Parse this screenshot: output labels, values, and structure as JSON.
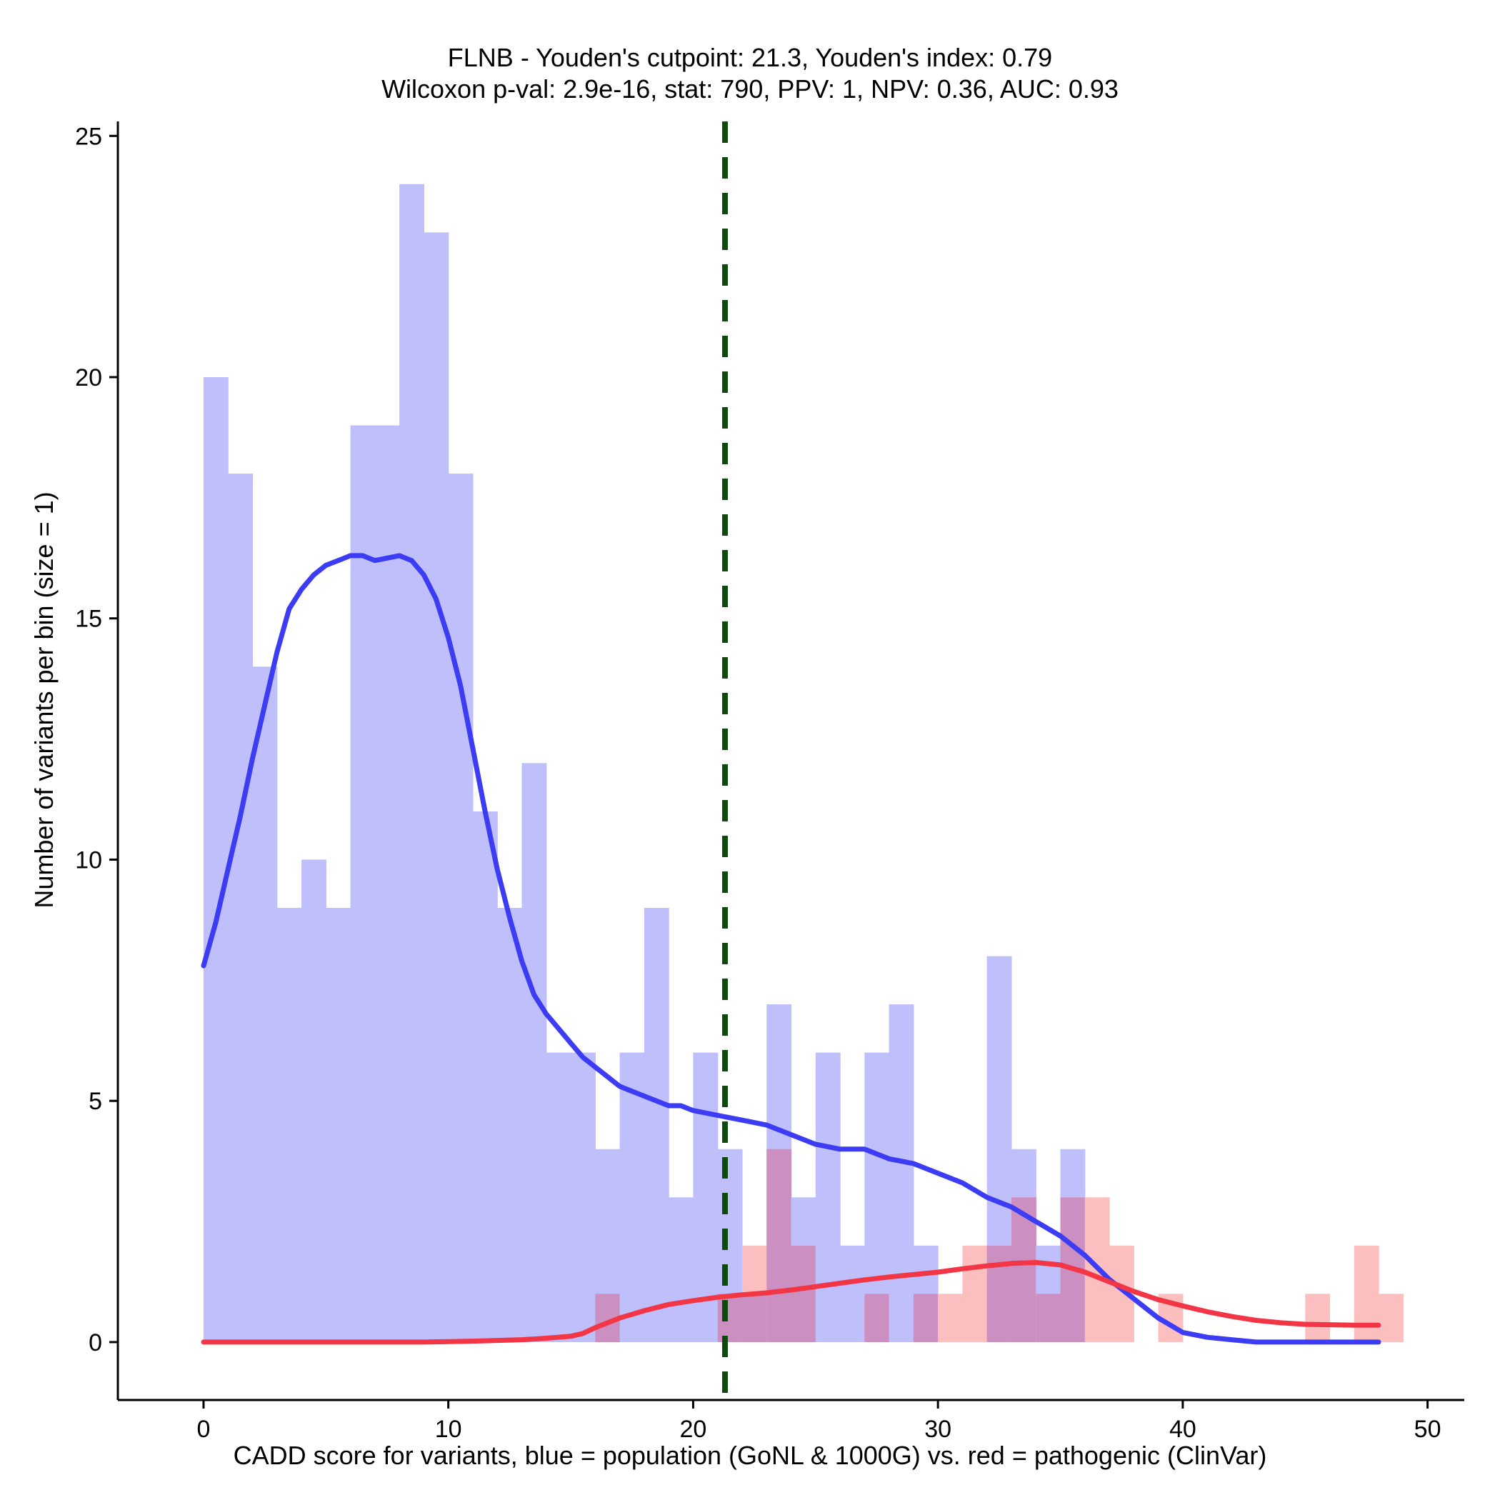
{
  "chart_data": {
    "type": "histogram",
    "title": "FLNB - Youden's cutpoint: 21.3, Youden's index: 0.79",
    "subtitle": "Wilcoxon p-val: 2.9e-16, stat: 790, PPV: 1, NPV: 0.36, AUC: 0.93",
    "xlabel": "CADD score for variants, blue = population (GoNL & 1000G) vs. red = pathogenic (ClinVar)",
    "ylabel": "Number of variants per bin (size = 1)",
    "xlim": [
      -3.5,
      51.5
    ],
    "ylim": [
      -1.2,
      25.3
    ],
    "xticks": [
      "0",
      "10",
      "20",
      "30",
      "40",
      "50"
    ],
    "yticks": [
      "0",
      "5",
      "10",
      "15",
      "20",
      "25"
    ],
    "cutpoint": 21.3,
    "bin_size": 1,
    "series": [
      {
        "name": "population (GoNL & 1000G)",
        "color": "#bfbffb",
        "bins_start": 0,
        "values": [
          20,
          18,
          14,
          9,
          10,
          9,
          19,
          19,
          24,
          23,
          18,
          11,
          9,
          12,
          6,
          6,
          4,
          6,
          9,
          3,
          6,
          4,
          1,
          7,
          3,
          6,
          2,
          6,
          7,
          2,
          0,
          0,
          8,
          4,
          2,
          4,
          0,
          0,
          0,
          0,
          0,
          0,
          0,
          0,
          0,
          0,
          0,
          0,
          0
        ]
      },
      {
        "name": "pathogenic (ClinVar)",
        "color": "#fbbfbf",
        "bins_start": 0,
        "values": [
          0,
          0,
          0,
          0,
          0,
          0,
          0,
          0,
          0,
          0,
          0,
          0,
          0,
          0,
          0,
          0,
          1,
          0,
          0,
          0,
          0,
          1,
          2,
          4,
          2,
          0,
          0,
          1,
          0,
          1,
          1,
          2,
          2,
          3,
          1,
          3,
          3,
          2,
          0,
          1,
          0,
          0,
          0,
          0,
          0,
          1,
          0,
          2,
          1
        ]
      }
    ],
    "overlap_color": "#cc8fc2",
    "density_lines": [
      {
        "name": "population density",
        "color": "#3c3cf5",
        "x": [
          0,
          0.5,
          1,
          1.5,
          2,
          2.5,
          3,
          3.5,
          4,
          4.5,
          5,
          5.5,
          6,
          6.5,
          7,
          8,
          8.5,
          9,
          9.5,
          10,
          10.5,
          11,
          11.5,
          12,
          12.5,
          13,
          13.5,
          14,
          14.5,
          15,
          15.5,
          16,
          16.5,
          17,
          17.5,
          18,
          18.5,
          19,
          19.5,
          20,
          21,
          22,
          23,
          24,
          25,
          26,
          27,
          28,
          29,
          30,
          31,
          32,
          33,
          34,
          35,
          36,
          37,
          38,
          39,
          40,
          41,
          42,
          43,
          44,
          45,
          46,
          47,
          48
        ],
        "y": [
          7.8,
          8.7,
          9.8,
          10.9,
          12.1,
          13.2,
          14.3,
          15.2,
          15.6,
          15.9,
          16.1,
          16.2,
          16.3,
          16.3,
          16.2,
          16.3,
          16.2,
          15.9,
          15.4,
          14.6,
          13.6,
          12.3,
          11.0,
          9.8,
          8.8,
          7.9,
          7.2,
          6.8,
          6.5,
          6.2,
          5.9,
          5.7,
          5.5,
          5.3,
          5.2,
          5.1,
          5.0,
          4.9,
          4.9,
          4.8,
          4.7,
          4.6,
          4.5,
          4.3,
          4.1,
          4.0,
          4.0,
          3.8,
          3.7,
          3.5,
          3.3,
          3.0,
          2.8,
          2.5,
          2.2,
          1.8,
          1.3,
          0.9,
          0.5,
          0.2,
          0.1,
          0.05,
          0.0,
          0.0,
          0.0,
          0.0,
          0.0,
          0.0
        ]
      },
      {
        "name": "pathogenic density",
        "color": "#f23645",
        "x": [
          0,
          5,
          9,
          11,
          13,
          14,
          15,
          15.5,
          16,
          17,
          18,
          19,
          20,
          21,
          22,
          23,
          24,
          25,
          26,
          27,
          28,
          29,
          30,
          31,
          32,
          33,
          34,
          35,
          36,
          37,
          38,
          39,
          40,
          41,
          42,
          43,
          44,
          45,
          46,
          47,
          48
        ],
        "y": [
          0,
          0,
          0,
          0.02,
          0.05,
          0.08,
          0.12,
          0.18,
          0.3,
          0.5,
          0.65,
          0.78,
          0.86,
          0.93,
          0.98,
          1.02,
          1.08,
          1.15,
          1.22,
          1.29,
          1.35,
          1.4,
          1.45,
          1.52,
          1.58,
          1.63,
          1.65,
          1.6,
          1.45,
          1.25,
          1.05,
          0.88,
          0.75,
          0.63,
          0.53,
          0.45,
          0.4,
          0.37,
          0.36,
          0.35,
          0.35
        ]
      }
    ]
  }
}
